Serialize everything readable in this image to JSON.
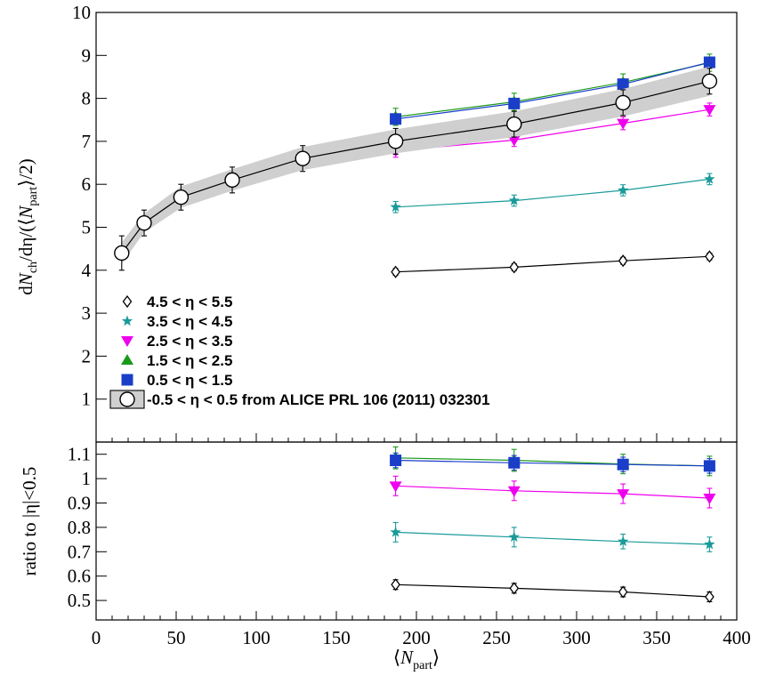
{
  "chart_data": [
    {
      "type": "line",
      "panel": "top",
      "ylabel": {
        "pre": "d",
        "N": "N",
        "ch": "ch",
        "mid": "/dη/(⟨",
        "N2": "N",
        "part": "part",
        "post": "⟩/2)"
      },
      "xlim": [
        0,
        400
      ],
      "ylim": [
        0,
        10
      ],
      "yticks": [
        1,
        2,
        3,
        4,
        5,
        6,
        7,
        8,
        9,
        10
      ],
      "ytick_labels": [
        "1",
        "2",
        "3",
        "4",
        "5",
        "6",
        "7",
        "8",
        "9",
        "10"
      ],
      "series": [
        {
          "name": "4.5 < η <  5.5",
          "color": "#000000",
          "marker": "diamond-open",
          "x": [
            187,
            261,
            329,
            383
          ],
          "y": [
            3.96,
            4.07,
            4.22,
            4.32
          ],
          "err": [
            0.08,
            0.08,
            0.08,
            0.08
          ]
        },
        {
          "name": "3.5 < η <  4.5",
          "color": "#1a9a9a",
          "marker": "star",
          "x": [
            187,
            261,
            329,
            383
          ],
          "y": [
            5.47,
            5.62,
            5.86,
            6.12
          ],
          "err": [
            0.13,
            0.13,
            0.13,
            0.13
          ]
        },
        {
          "name": "2.5 < η <  3.5",
          "color": "#ee00ee",
          "marker": "triangle-down",
          "x": [
            187,
            261,
            329,
            383
          ],
          "y": [
            6.78,
            7.03,
            7.42,
            7.74
          ],
          "err": [
            0.15,
            0.15,
            0.15,
            0.15
          ]
        },
        {
          "name": "1.5 < η <  2.5",
          "color": "#1a9a1a",
          "marker": "triangle-up",
          "x": [
            187,
            261,
            329,
            383
          ],
          "y": [
            7.57,
            7.92,
            8.37,
            8.83
          ],
          "err": [
            0.2,
            0.2,
            0.2,
            0.2
          ]
        },
        {
          "name": "0.5 < η <  1.5",
          "color": "#1a3ec8",
          "marker": "square",
          "x": [
            187,
            261,
            329,
            383
          ],
          "y": [
            7.52,
            7.88,
            8.33,
            8.84
          ],
          "err": [
            0.12,
            0.12,
            0.12,
            0.12
          ]
        },
        {
          "name": "-0.5 < η <  0.5 from ALICE PRL 106 (2011) 032301",
          "color": "#000000",
          "marker": "circle-open",
          "x": [
            16,
            30,
            53,
            85,
            129,
            187,
            261,
            329,
            383
          ],
          "y": [
            4.4,
            5.1,
            5.7,
            6.1,
            6.6,
            7.0,
            7.4,
            7.9,
            8.4
          ],
          "err": [
            0.4,
            0.3,
            0.3,
            0.3,
            0.3,
            0.3,
            0.3,
            0.3,
            0.3
          ],
          "band": [
            0.25,
            0.22,
            0.25,
            0.25,
            0.27,
            0.28,
            0.3,
            0.32,
            0.34
          ]
        }
      ]
    },
    {
      "type": "line",
      "panel": "bottom",
      "ylabel": "ratio to |η|<0.5",
      "xlabel": {
        "pre": "⟨",
        "N": "N",
        "part": "part",
        "post": "⟩"
      },
      "xlim": [
        0,
        400
      ],
      "ylim": [
        0.42,
        1.15
      ],
      "xticks": [
        0,
        50,
        100,
        150,
        200,
        250,
        300,
        350,
        400
      ],
      "xtick_labels": [
        "0",
        "50",
        "100",
        "150",
        "200",
        "250",
        "300",
        "350",
        "400"
      ],
      "yticks": [
        0.5,
        0.6,
        0.7,
        0.8,
        0.9,
        1.0,
        1.1
      ],
      "ytick_labels": [
        "0.5",
        "0.6",
        "0.7",
        "0.8",
        "0.9",
        "1",
        "1.1"
      ],
      "series": [
        {
          "name": "4.5 < η <  5.5",
          "color": "#000000",
          "marker": "diamond-open",
          "x": [
            187,
            261,
            329,
            383
          ],
          "y": [
            0.565,
            0.55,
            0.535,
            0.515
          ],
          "err": [
            0.02,
            0.02,
            0.02,
            0.02
          ]
        },
        {
          "name": "3.5 < η <  4.5",
          "color": "#1a9a9a",
          "marker": "star",
          "x": [
            187,
            261,
            329,
            383
          ],
          "y": [
            0.78,
            0.76,
            0.742,
            0.73
          ],
          "err": [
            0.04,
            0.04,
            0.03,
            0.03
          ]
        },
        {
          "name": "2.5 < η <  3.5",
          "color": "#ee00ee",
          "marker": "triangle-down",
          "x": [
            187,
            261,
            329,
            383
          ],
          "y": [
            0.97,
            0.95,
            0.938,
            0.92
          ],
          "err": [
            0.04,
            0.04,
            0.04,
            0.04
          ]
        },
        {
          "name": "1.5 < η <  2.5",
          "color": "#1a9a1a",
          "marker": "triangle-up",
          "x": [
            187,
            261,
            329,
            383
          ],
          "y": [
            1.085,
            1.075,
            1.06,
            1.052
          ],
          "err": [
            0.045,
            0.045,
            0.04,
            0.04
          ]
        },
        {
          "name": "0.5 < η <  1.5",
          "color": "#1a3ec8",
          "marker": "square",
          "x": [
            187,
            261,
            329,
            383
          ],
          "y": [
            1.075,
            1.065,
            1.058,
            1.052
          ],
          "err": [
            0.03,
            0.03,
            0.03,
            0.03
          ]
        }
      ]
    }
  ]
}
